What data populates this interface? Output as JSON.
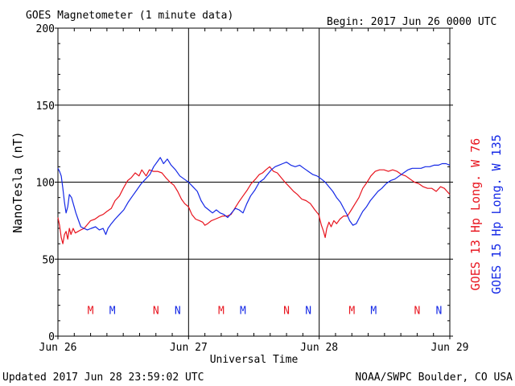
{
  "title": "GOES Magnetometer (1 minute data)",
  "begin_label": "Begin:  2017 Jun 26 0000 UTC",
  "updated_label": "Updated 2017 Jun 28 23:59:02 UTC",
  "credit_label": "NOAA/SWPC Boulder, CO USA",
  "colors": {
    "red": "#e8141e",
    "blue": "#1428e6"
  },
  "chart_data": {
    "type": "line",
    "title": "GOES Magnetometer (1 minute data)",
    "xlabel": "Universal Time",
    "ylabel": "NanoTesla (nT)",
    "ylim": [
      0,
      200
    ],
    "xlim": [
      0,
      72
    ],
    "yticks": [
      0,
      50,
      100,
      150,
      200
    ],
    "xticks": [
      {
        "x": 0,
        "label": "Jun 26"
      },
      {
        "x": 24,
        "label": "Jun 27"
      },
      {
        "x": 48,
        "label": "Jun 28"
      },
      {
        "x": 72,
        "label": "Jun 29"
      }
    ],
    "grid": true,
    "legend_position": "right (vertical)",
    "series": [
      {
        "name": "GOES 13 Hp  Long. W 76",
        "color": "red",
        "points": [
          [
            0,
            77
          ],
          [
            0.3,
            72
          ],
          [
            0.6,
            64
          ],
          [
            0.9,
            60
          ],
          [
            1.2,
            66
          ],
          [
            1.5,
            68
          ],
          [
            1.8,
            63
          ],
          [
            2.1,
            70
          ],
          [
            2.4,
            66
          ],
          [
            2.8,
            70
          ],
          [
            3.2,
            67
          ],
          [
            3.7,
            68
          ],
          [
            4.2,
            69
          ],
          [
            4.8,
            70
          ],
          [
            5.3,
            72
          ],
          [
            6,
            75
          ],
          [
            6.8,
            76
          ],
          [
            7.6,
            78
          ],
          [
            8.3,
            79
          ],
          [
            9,
            81
          ],
          [
            9.8,
            83
          ],
          [
            10.5,
            88
          ],
          [
            11.3,
            91
          ],
          [
            12,
            96
          ],
          [
            12.8,
            101
          ],
          [
            13.5,
            103
          ],
          [
            14.2,
            106
          ],
          [
            14.9,
            104
          ],
          [
            15.4,
            108
          ],
          [
            16.2,
            104
          ],
          [
            16.8,
            108
          ],
          [
            17.5,
            107
          ],
          [
            18.3,
            107
          ],
          [
            19.1,
            106
          ],
          [
            19.8,
            103
          ],
          [
            20.6,
            100
          ],
          [
            21.3,
            98
          ],
          [
            22,
            94
          ],
          [
            22.7,
            89
          ],
          [
            23.3,
            86
          ],
          [
            24,
            84
          ],
          [
            24.6,
            79
          ],
          [
            25.3,
            76
          ],
          [
            26,
            75
          ],
          [
            26.6,
            74
          ],
          [
            27,
            72
          ],
          [
            27.5,
            73
          ],
          [
            28.2,
            75
          ],
          [
            28.9,
            76
          ],
          [
            29.6,
            77
          ],
          [
            30.3,
            78
          ],
          [
            31.1,
            78
          ],
          [
            31.8,
            79
          ],
          [
            32.5,
            83
          ],
          [
            33.2,
            87
          ],
          [
            34,
            91
          ],
          [
            34.8,
            95
          ],
          [
            35.5,
            99
          ],
          [
            36.3,
            102
          ],
          [
            37,
            105
          ],
          [
            37.6,
            106
          ],
          [
            38.2,
            108
          ],
          [
            38.9,
            110
          ],
          [
            39.6,
            107
          ],
          [
            40.3,
            106
          ],
          [
            41,
            103
          ],
          [
            41.7,
            100
          ],
          [
            42.5,
            97
          ],
          [
            43.3,
            94
          ],
          [
            44,
            92
          ],
          [
            44.8,
            89
          ],
          [
            45.6,
            88
          ],
          [
            46.4,
            86
          ],
          [
            47.2,
            82
          ],
          [
            47.9,
            79
          ],
          [
            48.4,
            72
          ],
          [
            48.8,
            68
          ],
          [
            49.1,
            64
          ],
          [
            49.4,
            70
          ],
          [
            49.8,
            74
          ],
          [
            50.2,
            71
          ],
          [
            50.7,
            75
          ],
          [
            51.2,
            73
          ],
          [
            51.8,
            76
          ],
          [
            52.5,
            78
          ],
          [
            53.2,
            78
          ],
          [
            53.9,
            82
          ],
          [
            54.6,
            86
          ],
          [
            55.3,
            90
          ],
          [
            56,
            96
          ],
          [
            56.8,
            100
          ],
          [
            57.5,
            104
          ],
          [
            58.3,
            107
          ],
          [
            59.1,
            108
          ],
          [
            59.9,
            108
          ],
          [
            60.7,
            107
          ],
          [
            61.5,
            108
          ],
          [
            62.3,
            107
          ],
          [
            63.1,
            105
          ],
          [
            63.9,
            104
          ],
          [
            64.7,
            102
          ],
          [
            65.5,
            100
          ],
          [
            66.3,
            99
          ],
          [
            67.1,
            97
          ],
          [
            67.9,
            96
          ],
          [
            68.7,
            96
          ],
          [
            69.5,
            94
          ],
          [
            70.3,
            97
          ],
          [
            71,
            96
          ],
          [
            71.5,
            94
          ],
          [
            72,
            92
          ]
        ]
      },
      {
        "name": "GOES 15 Hp  Long. W 135",
        "color": "blue",
        "points": [
          [
            0,
            109
          ],
          [
            0.3,
            107
          ],
          [
            0.6,
            104
          ],
          [
            0.9,
            96
          ],
          [
            1.2,
            87
          ],
          [
            1.5,
            80
          ],
          [
            1.8,
            84
          ],
          [
            2.1,
            92
          ],
          [
            2.5,
            90
          ],
          [
            2.9,
            85
          ],
          [
            3.3,
            80
          ],
          [
            3.7,
            76
          ],
          [
            4.2,
            71
          ],
          [
            4.8,
            70
          ],
          [
            5.4,
            69
          ],
          [
            6.1,
            70
          ],
          [
            6.9,
            71
          ],
          [
            7.6,
            69
          ],
          [
            8.3,
            70
          ],
          [
            8.8,
            66
          ],
          [
            9.2,
            70
          ],
          [
            9.8,
            73
          ],
          [
            10.5,
            76
          ],
          [
            11.3,
            79
          ],
          [
            12.1,
            82
          ],
          [
            12.9,
            87
          ],
          [
            13.7,
            91
          ],
          [
            14.5,
            95
          ],
          [
            15.3,
            99
          ],
          [
            16.1,
            102
          ],
          [
            16.9,
            105
          ],
          [
            17.6,
            110
          ],
          [
            18.2,
            113
          ],
          [
            18.8,
            116
          ],
          [
            19.4,
            112
          ],
          [
            20.1,
            115
          ],
          [
            20.8,
            111
          ],
          [
            21.6,
            108
          ],
          [
            22.4,
            104
          ],
          [
            23.2,
            102
          ],
          [
            24,
            100
          ],
          [
            24.8,
            97
          ],
          [
            25.6,
            94
          ],
          [
            26.3,
            88
          ],
          [
            27,
            84
          ],
          [
            27.7,
            82
          ],
          [
            28.4,
            80
          ],
          [
            29.1,
            82
          ],
          [
            29.8,
            80
          ],
          [
            30.5,
            79
          ],
          [
            31.2,
            77
          ],
          [
            31.9,
            80
          ],
          [
            32.6,
            83
          ],
          [
            33.3,
            82
          ],
          [
            34,
            80
          ],
          [
            34.7,
            86
          ],
          [
            35.4,
            91
          ],
          [
            36.2,
            95
          ],
          [
            37,
            100
          ],
          [
            37.8,
            102
          ],
          [
            38.5,
            105
          ],
          [
            39.2,
            108
          ],
          [
            39.9,
            110
          ],
          [
            40.6,
            111
          ],
          [
            41.3,
            112
          ],
          [
            42,
            113
          ],
          [
            42.8,
            111
          ],
          [
            43.6,
            110
          ],
          [
            44.4,
            111
          ],
          [
            45.2,
            109
          ],
          [
            46,
            107
          ],
          [
            46.8,
            105
          ],
          [
            47.6,
            104
          ],
          [
            48.4,
            102
          ],
          [
            49.1,
            100
          ],
          [
            49.8,
            97
          ],
          [
            50.5,
            94
          ],
          [
            51.2,
            90
          ],
          [
            51.9,
            87
          ],
          [
            52.5,
            83
          ],
          [
            53.1,
            79
          ],
          [
            53.6,
            75
          ],
          [
            54.2,
            72
          ],
          [
            54.8,
            73
          ],
          [
            55.4,
            77
          ],
          [
            56,
            81
          ],
          [
            56.7,
            84
          ],
          [
            57.4,
            88
          ],
          [
            58.1,
            91
          ],
          [
            58.8,
            94
          ],
          [
            59.5,
            96
          ],
          [
            60.3,
            99
          ],
          [
            61.1,
            101
          ],
          [
            61.9,
            102
          ],
          [
            62.7,
            104
          ],
          [
            63.5,
            106
          ],
          [
            64.3,
            108
          ],
          [
            65.1,
            109
          ],
          [
            65.9,
            109
          ],
          [
            66.7,
            109
          ],
          [
            67.5,
            110
          ],
          [
            68.3,
            110
          ],
          [
            69.1,
            111
          ],
          [
            69.9,
            111
          ],
          [
            70.6,
            112
          ],
          [
            71.3,
            112
          ],
          [
            72,
            111
          ]
        ]
      }
    ],
    "annotations": [
      {
        "text": "M",
        "x": 6,
        "color": "red"
      },
      {
        "text": "M",
        "x": 10,
        "color": "blue"
      },
      {
        "text": "N",
        "x": 18,
        "color": "red"
      },
      {
        "text": "N",
        "x": 22,
        "color": "blue"
      },
      {
        "text": "M",
        "x": 30,
        "color": "red"
      },
      {
        "text": "M",
        "x": 34,
        "color": "blue"
      },
      {
        "text": "N",
        "x": 42,
        "color": "red"
      },
      {
        "text": "N",
        "x": 46,
        "color": "blue"
      },
      {
        "text": "M",
        "x": 54,
        "color": "red"
      },
      {
        "text": "M",
        "x": 58,
        "color": "blue"
      },
      {
        "text": "N",
        "x": 66,
        "color": "red"
      },
      {
        "text": "N",
        "x": 70,
        "color": "blue"
      }
    ],
    "annotation_level": 17
  }
}
